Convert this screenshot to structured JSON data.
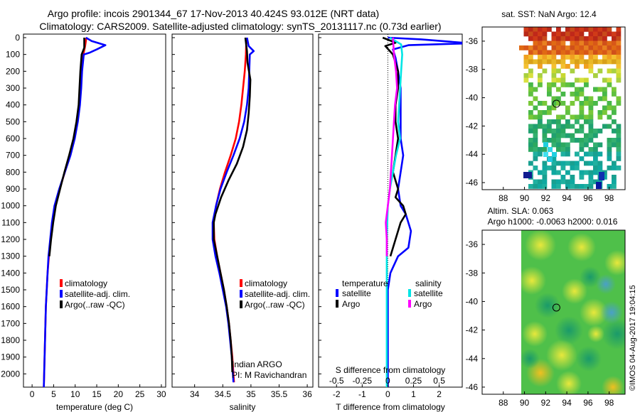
{
  "header": {
    "line1": "Argo profile: incois 2901344_67 17-Nov-2013 40.424S 93.012E (NRT data)",
    "line2": "Climatology: CARS2009. Satellite-adjusted climatology: synTS_20131117.nc (0.73d earlier)"
  },
  "colors": {
    "climatology": "#ff0000",
    "satellite": "#0000ff",
    "argo": "#000000",
    "sat_s": "#00e5e5",
    "argo_s": "#ff00ff"
  },
  "chart_data": [
    {
      "id": "temperature",
      "type": "line",
      "xlabel": "temperature (deg C)",
      "ylabel": "",
      "xlim": [
        -2,
        31
      ],
      "ylim": [
        2100,
        0
      ],
      "xticks": [
        0,
        5,
        10,
        15,
        20,
        25,
        30
      ],
      "yticks": [
        0,
        100,
        200,
        300,
        400,
        500,
        600,
        700,
        800,
        900,
        1000,
        1100,
        1200,
        1300,
        1400,
        1500,
        1600,
        1700,
        1800,
        1900,
        2000
      ],
      "legend": [
        "climatology",
        "satellite-adj. clim.",
        "Argo(..raw -QC)"
      ],
      "series": [
        {
          "name": "climatology",
          "color": "#ff0000",
          "points": [
            [
              12.6,
              0
            ],
            [
              12.3,
              50
            ],
            [
              11.9,
              100
            ],
            [
              11.5,
              200
            ],
            [
              11.3,
              300
            ],
            [
              11.0,
              400
            ],
            [
              10.5,
              500
            ],
            [
              9.8,
              600
            ],
            [
              8.8,
              700
            ],
            [
              7.6,
              800
            ],
            [
              6.4,
              900
            ],
            [
              5.4,
              1000
            ],
            [
              4.8,
              1100
            ],
            [
              4.3,
              1200
            ],
            [
              3.9,
              1300
            ],
            [
              3.6,
              1400
            ],
            [
              3.4,
              1500
            ],
            [
              3.2,
              1600
            ],
            [
              3.0,
              1800
            ],
            [
              2.8,
              2000
            ],
            [
              2.7,
              2100
            ]
          ]
        },
        {
          "name": "satellite",
          "color": "#0000ff",
          "points": [
            [
              12.5,
              0
            ],
            [
              13.8,
              20
            ],
            [
              17.0,
              45
            ],
            [
              15.0,
              70
            ],
            [
              13.3,
              90
            ],
            [
              12.0,
              100
            ],
            [
              11.6,
              200
            ],
            [
              11.4,
              300
            ],
            [
              11.1,
              400
            ],
            [
              10.6,
              500
            ],
            [
              9.9,
              600
            ],
            [
              8.9,
              700
            ],
            [
              7.6,
              800
            ],
            [
              6.3,
              900
            ],
            [
              5.2,
              1000
            ],
            [
              4.6,
              1100
            ],
            [
              4.2,
              1200
            ],
            [
              3.8,
              1300
            ],
            [
              3.6,
              1400
            ],
            [
              3.4,
              1500
            ],
            [
              3.2,
              1600
            ],
            [
              3.0,
              1800
            ],
            [
              2.8,
              2000
            ],
            [
              2.7,
              2100
            ]
          ]
        },
        {
          "name": "argo",
          "color": "#000000",
          "points": [
            [
              12.1,
              0
            ],
            [
              12.1,
              60
            ],
            [
              11.5,
              100
            ],
            [
              11.2,
              200
            ],
            [
              11.0,
              300
            ],
            [
              10.8,
              400
            ],
            [
              10.3,
              500
            ],
            [
              9.6,
              600
            ],
            [
              8.6,
              700
            ],
            [
              7.5,
              800
            ],
            [
              6.5,
              900
            ],
            [
              5.5,
              1000
            ],
            [
              4.9,
              1100
            ],
            [
              4.4,
              1200
            ],
            [
              4.0,
              1300
            ]
          ]
        }
      ]
    },
    {
      "id": "salinity",
      "type": "line",
      "xlabel": "salinity",
      "xlim": [
        33.6,
        36.1
      ],
      "ylim": [
        2100,
        0
      ],
      "xticks": [
        34,
        34.5,
        35,
        35.5,
        36
      ],
      "legend": [
        "climatology",
        "satellite-adj. clim.",
        "Argo(..raw -QC)"
      ],
      "annotation": [
        "Indian ARGO",
        "PI: M Ravichandran"
      ],
      "series": [
        {
          "name": "climatology",
          "color": "#ff0000",
          "points": [
            [
              34.92,
              0
            ],
            [
              34.91,
              100
            ],
            [
              34.89,
              200
            ],
            [
              34.86,
              300
            ],
            [
              34.83,
              400
            ],
            [
              34.79,
              500
            ],
            [
              34.73,
              600
            ],
            [
              34.64,
              700
            ],
            [
              34.54,
              800
            ],
            [
              34.45,
              900
            ],
            [
              34.38,
              1000
            ],
            [
              34.34,
              1100
            ],
            [
              34.35,
              1200
            ],
            [
              34.4,
              1300
            ],
            [
              34.46,
              1400
            ],
            [
              34.52,
              1500
            ],
            [
              34.57,
              1600
            ],
            [
              34.61,
              1700
            ],
            [
              34.64,
              1800
            ],
            [
              34.67,
              1900
            ],
            [
              34.69,
              2000
            ],
            [
              34.7,
              2050
            ]
          ]
        },
        {
          "name": "satellite",
          "color": "#0000ff",
          "points": [
            [
              34.93,
              0
            ],
            [
              34.96,
              50
            ],
            [
              35.05,
              80
            ],
            [
              34.98,
              100
            ],
            [
              34.97,
              200
            ],
            [
              34.96,
              300
            ],
            [
              34.93,
              400
            ],
            [
              34.88,
              500
            ],
            [
              34.8,
              600
            ],
            [
              34.69,
              700
            ],
            [
              34.57,
              800
            ],
            [
              34.46,
              900
            ],
            [
              34.38,
              1000
            ],
            [
              34.32,
              1100
            ],
            [
              34.32,
              1200
            ],
            [
              34.37,
              1300
            ],
            [
              34.44,
              1400
            ],
            [
              34.5,
              1500
            ],
            [
              34.56,
              1600
            ],
            [
              34.6,
              1700
            ],
            [
              34.63,
              1800
            ],
            [
              34.66,
              1900
            ],
            [
              34.68,
              2000
            ],
            [
              34.69,
              2050
            ]
          ]
        },
        {
          "name": "argo",
          "color": "#000000",
          "points": [
            [
              34.9,
              0
            ],
            [
              34.93,
              80
            ],
            [
              34.94,
              150
            ],
            [
              34.99,
              250
            ],
            [
              34.98,
              350
            ],
            [
              34.96,
              450
            ],
            [
              34.93,
              550
            ],
            [
              34.86,
              650
            ],
            [
              34.75,
              750
            ],
            [
              34.6,
              850
            ],
            [
              34.47,
              950
            ],
            [
              34.37,
              1050
            ],
            [
              34.34,
              1100
            ],
            [
              34.34,
              1200
            ],
            [
              34.4,
              1300
            ],
            [
              34.46,
              1400
            ],
            [
              34.52,
              1500
            ],
            [
              34.57,
              1600
            ],
            [
              34.61,
              1700
            ],
            [
              34.64,
              1800
            ],
            [
              34.66,
              1900
            ],
            [
              34.67,
              1990
            ]
          ]
        }
      ]
    },
    {
      "id": "differences",
      "type": "line",
      "xlabel": "T difference from climatology",
      "xlabel_top": "S difference from climatology",
      "xlim": [
        -2.7,
        2.9
      ],
      "ylim": [
        2100,
        0
      ],
      "xticks": [
        -2,
        -1,
        0,
        1,
        2
      ],
      "xticks_s": [
        "-0.5",
        "-0.25",
        "0",
        "0.25",
        "0.5"
      ],
      "xticks_s_values": [
        -0.5,
        -0.25,
        0,
        0.25,
        0.5
      ],
      "legend_left_title": "temperature",
      "legend_right_title": "salinity",
      "legend": [
        "satellite",
        "Argo",
        "satellite",
        "Argo"
      ],
      "series": [
        {
          "name": "T satellite",
          "color": "#0000ff",
          "points": [
            [
              0.0,
              0
            ],
            [
              1.3,
              10
            ],
            [
              2.9,
              30
            ],
            [
              2.9,
              35
            ],
            [
              0.8,
              45
            ],
            [
              0.2,
              70
            ],
            [
              0.3,
              120
            ],
            [
              0.4,
              200
            ],
            [
              0.5,
              300
            ],
            [
              0.5,
              450
            ],
            [
              0.5,
              600
            ],
            [
              0.6,
              700
            ],
            [
              0.5,
              800
            ],
            [
              0.4,
              900
            ],
            [
              0.5,
              1000
            ],
            [
              0.7,
              1050
            ],
            [
              0.9,
              1150
            ],
            [
              0.8,
              1250
            ],
            [
              0.4,
              1300
            ],
            [
              0.1,
              1400
            ],
            [
              0.0,
              1500
            ],
            [
              0.0,
              1700
            ],
            [
              0.0,
              2100
            ]
          ]
        },
        {
          "name": "T argo",
          "color": "#000000",
          "points": [
            [
              -0.2,
              0
            ],
            [
              0.3,
              30
            ],
            [
              -0.1,
              50
            ],
            [
              0.2,
              100
            ],
            [
              0.3,
              150
            ],
            [
              0.4,
              200
            ],
            [
              0.4,
              300
            ],
            [
              0.3,
              400
            ],
            [
              0.3,
              500
            ],
            [
              0.4,
              600
            ],
            [
              0.3,
              700
            ],
            [
              0.2,
              800
            ],
            [
              0.4,
              900
            ],
            [
              0.3,
              950
            ],
            [
              0.6,
              1000
            ],
            [
              0.7,
              1050
            ],
            [
              0.5,
              1100
            ],
            [
              0.3,
              1200
            ],
            [
              0.1,
              1300
            ]
          ]
        },
        {
          "name": "S satellite",
          "color": "#00e5e5",
          "points": [
            [
              0.02,
              0
            ],
            [
              0.13,
              40
            ],
            [
              0.14,
              100
            ],
            [
              0.13,
              200
            ],
            [
              0.12,
              300
            ],
            [
              0.11,
              400
            ],
            [
              0.1,
              500
            ],
            [
              0.12,
              600
            ],
            [
              0.08,
              700
            ],
            [
              0.05,
              800
            ],
            [
              0.02,
              900
            ],
            [
              0.0,
              1000
            ],
            [
              -0.01,
              1200
            ],
            [
              -0.01,
              1600
            ],
            [
              -0.01,
              2100
            ]
          ]
        },
        {
          "name": "S argo",
          "color": "#ff00ff",
          "points": [
            [
              0.05,
              0
            ],
            [
              0.06,
              100
            ],
            [
              0.08,
              200
            ],
            [
              0.09,
              300
            ],
            [
              0.07,
              400
            ],
            [
              0.06,
              500
            ],
            [
              0.05,
              600
            ],
            [
              0.04,
              700
            ],
            [
              0.03,
              800
            ],
            [
              0.02,
              900
            ],
            [
              0.0,
              1000
            ],
            [
              -0.02,
              1100
            ],
            [
              -0.01,
              1200
            ],
            [
              -0.01,
              1300
            ]
          ]
        }
      ]
    },
    {
      "id": "sst-map",
      "type": "heatmap",
      "title": "sat. SST: NaN Argo: 12.4",
      "xticks": [
        88,
        90,
        92,
        94,
        96,
        98
      ],
      "yticks": [
        -36,
        -38,
        -40,
        -42,
        -44,
        -46
      ],
      "xlim": [
        86,
        99.5
      ],
      "ylim": [
        -46.5,
        -35
      ]
    },
    {
      "id": "sla-map",
      "type": "heatmap",
      "title_line1": "Altim. SLA: 0.063",
      "title_line2": "Argo h1000: -0.0063 h2000: 0.016",
      "xticks": [
        88,
        90,
        92,
        94,
        96,
        98
      ],
      "yticks": [
        -36,
        -38,
        -40,
        -42,
        -44,
        -46
      ],
      "xlim": [
        86,
        99.5
      ],
      "ylim": [
        -46.5,
        -35
      ]
    }
  ],
  "argo_position": {
    "lon": 93.012,
    "lat": -40.424
  },
  "footer": {
    "credit": "©IMOS 04-Aug-2017 19:04:15"
  }
}
